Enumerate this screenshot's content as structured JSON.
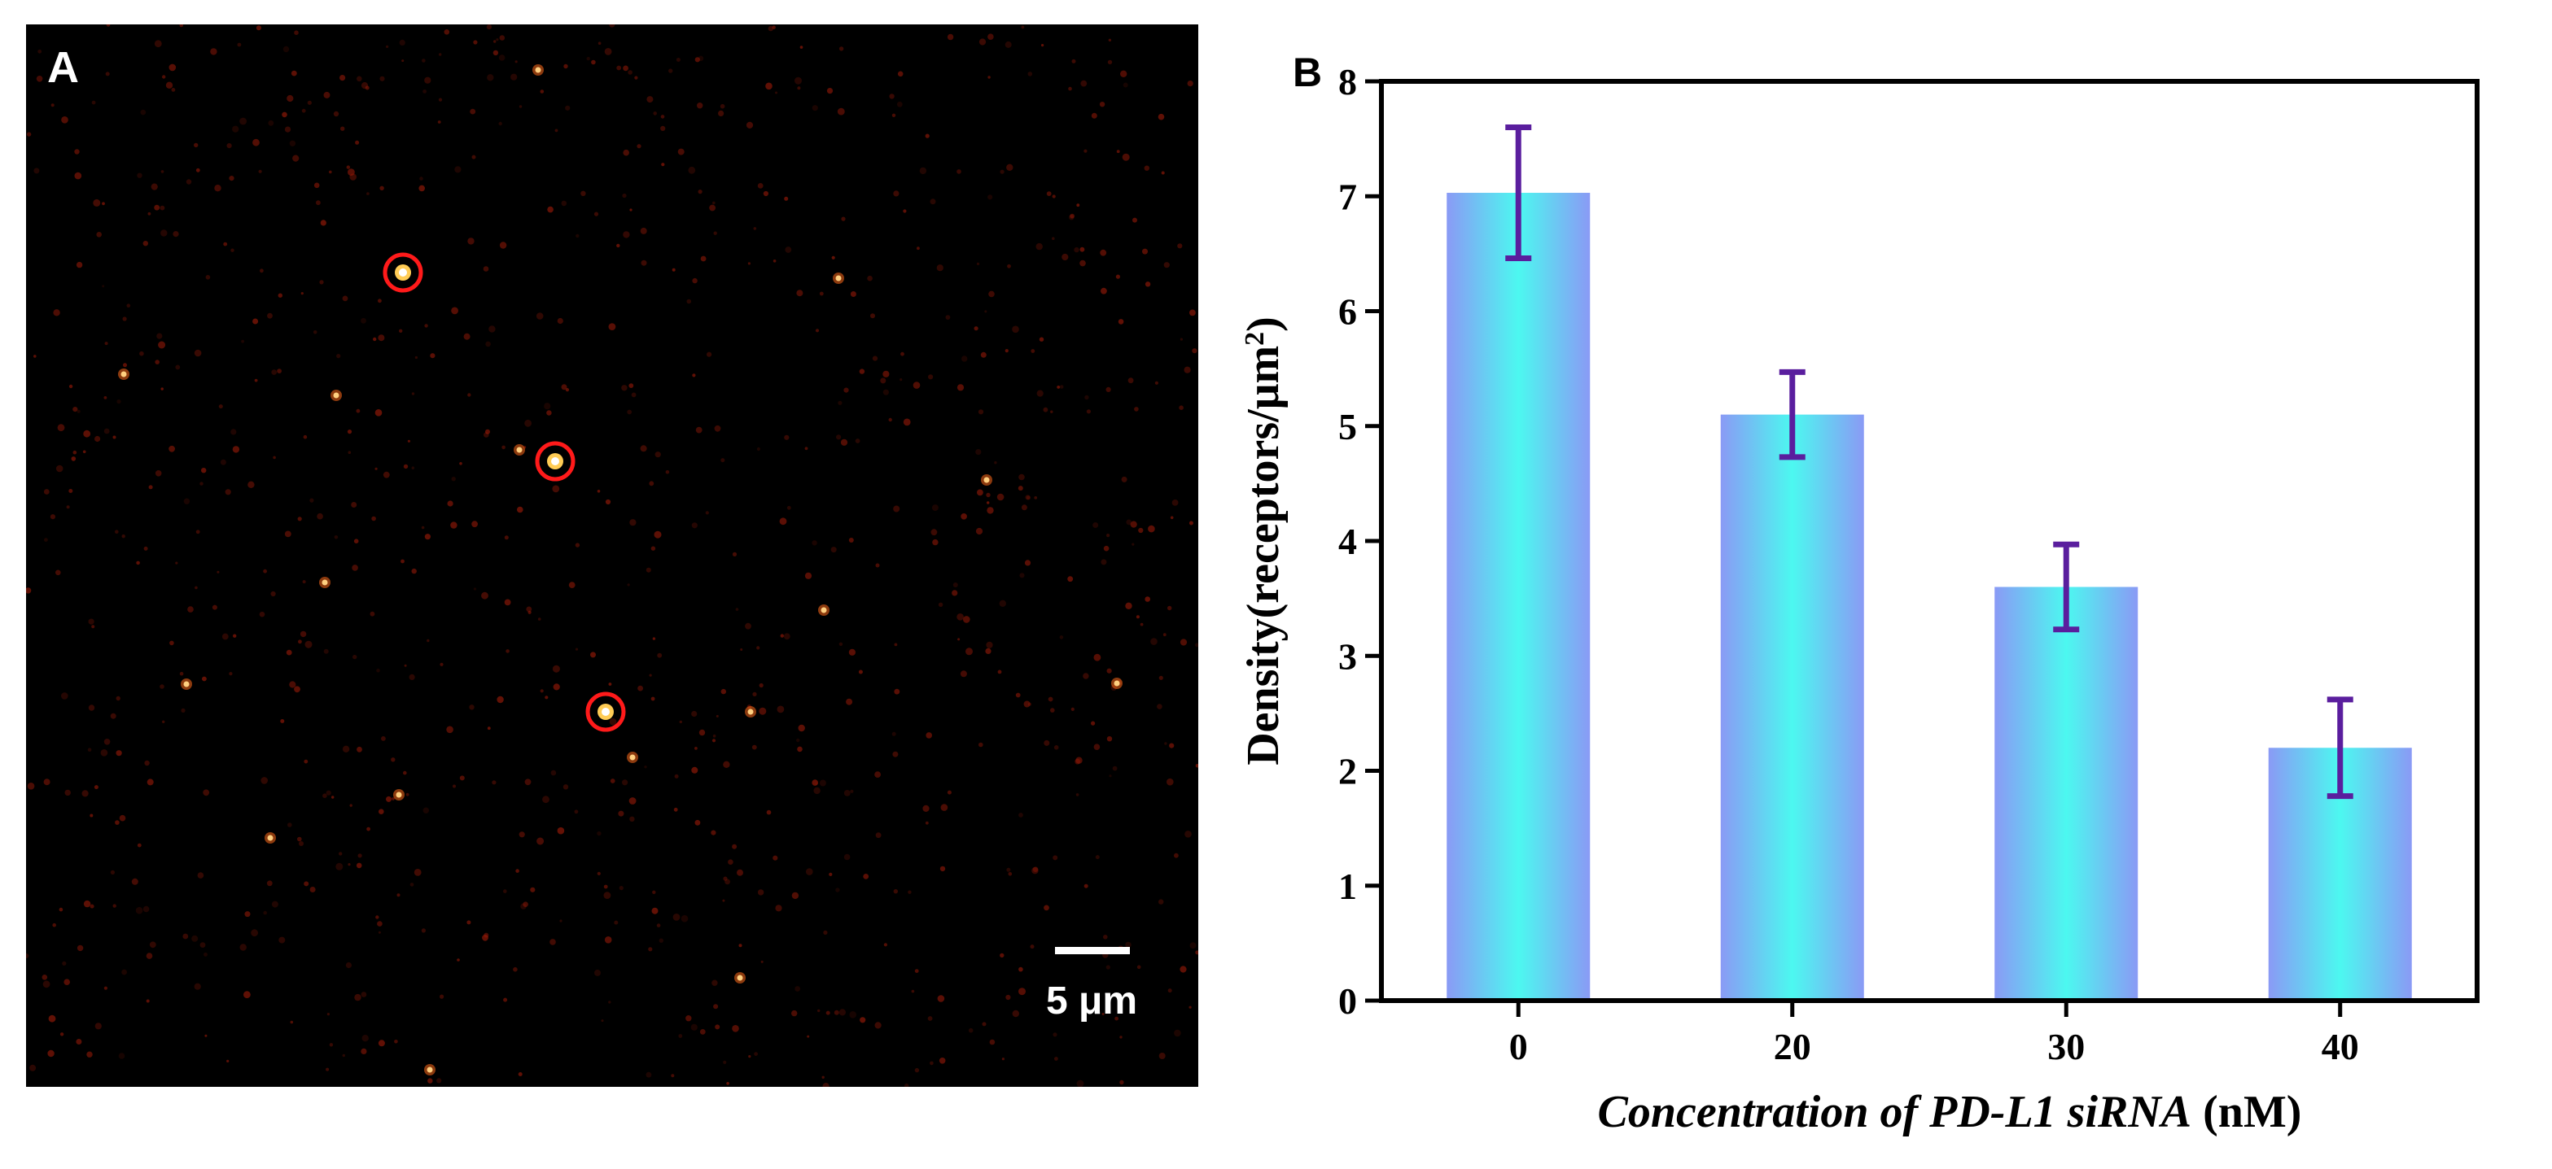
{
  "panel_a": {
    "label": "A",
    "scale_bar_label": "5 μm",
    "colors": {
      "background": "#000000",
      "spot": "#ff6a1a",
      "circle": "#ff1a1a"
    }
  },
  "chart_data": {
    "type": "bar",
    "panel_label": "B",
    "categories": [
      "0",
      "20",
      "30",
      "40"
    ],
    "values": [
      7.03,
      5.1,
      3.6,
      2.2
    ],
    "errors": [
      0.57,
      0.37,
      0.37,
      0.42
    ],
    "xlabel": {
      "italic": "Concentration of PD-L1 siRNA",
      "unit": " (nM)"
    },
    "ylabel": {
      "text": "Density(receptors/μm",
      "superscript": "2",
      "close": ")"
    },
    "ylim": [
      0,
      8
    ],
    "yticks": [
      0,
      1,
      2,
      3,
      4,
      5,
      6,
      7,
      8
    ],
    "colors": {
      "bar_edge": "#8a9af5",
      "bar_center": "#4cf8f0",
      "error_bar": "#5a1e9e",
      "axis": "#000000"
    }
  }
}
